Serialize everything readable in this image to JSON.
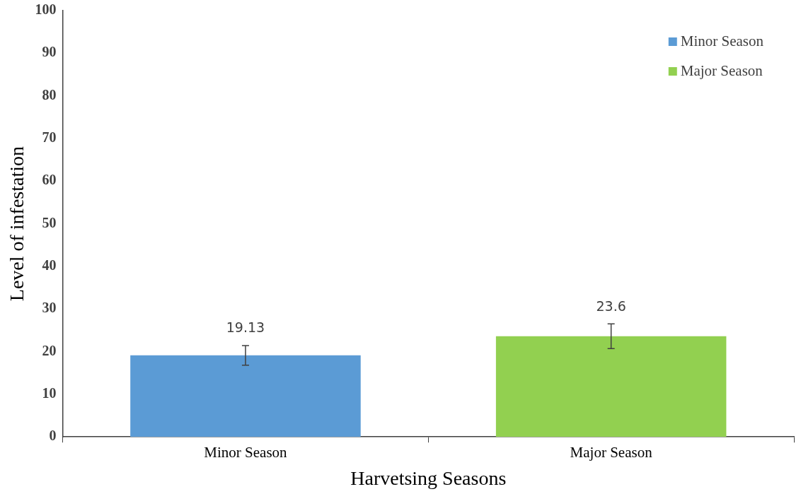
{
  "chart_data": {
    "type": "bar",
    "xlabel": "Harvetsing Seasons",
    "ylabel": "Level of infestation",
    "categories": [
      "Minor Season",
      "Major Season"
    ],
    "series": [
      {
        "name": "Minor Season",
        "color": "#5b9bd5",
        "values": [
          19.13,
          null
        ],
        "errors": [
          2.3,
          null
        ]
      },
      {
        "name": "Major Season",
        "color": "#92d050",
        "values": [
          null,
          23.6
        ],
        "errors": [
          null,
          2.9
        ]
      }
    ],
    "ylim": [
      0,
      100
    ],
    "yticks": [
      0,
      10,
      20,
      30,
      40,
      50,
      60,
      70,
      80,
      90,
      100
    ],
    "data_labels": true,
    "legend": "top right"
  }
}
